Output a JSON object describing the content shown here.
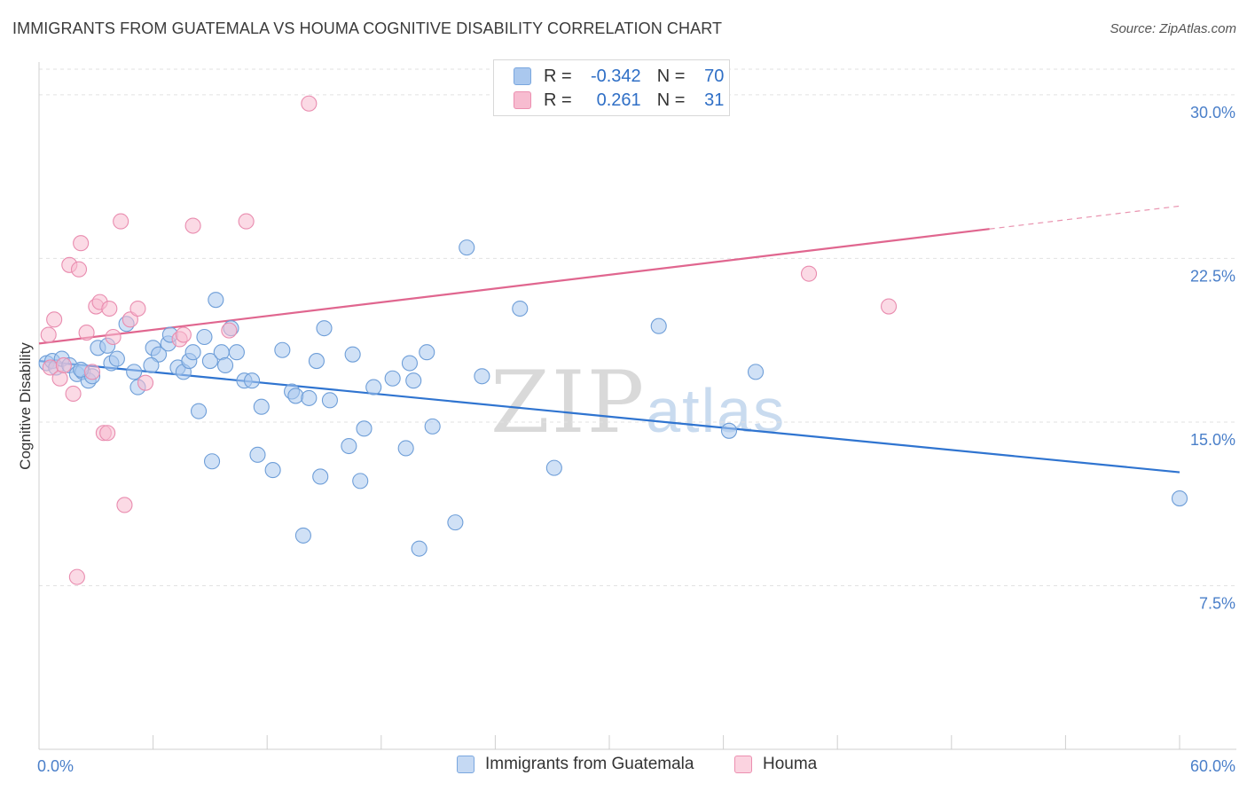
{
  "header": {
    "title": "IMMIGRANTS FROM GUATEMALA VS HOUMA COGNITIVE DISABILITY CORRELATION CHART",
    "source": "Source: ZipAtlas.com"
  },
  "watermark": {
    "part1": "ZIP",
    "part2": "atlas"
  },
  "legend": {
    "rows": [
      {
        "r_label": "R =",
        "r_value": "-0.342",
        "n_label": "N =",
        "n_value": "70",
        "color": "#aac8ee",
        "border": "#7aa7df"
      },
      {
        "r_label": "R =",
        "r_value": "0.261",
        "n_label": "N =",
        "n_value": "31",
        "color": "#f7bcd0",
        "border": "#ec8fb0"
      }
    ]
  },
  "bottom_legend": {
    "items": [
      {
        "label": "Immigrants from Guatemala",
        "color": "#c5d9f3",
        "border": "#7aa7df"
      },
      {
        "label": "Houma",
        "color": "#fbd3e0",
        "border": "#ec8fb0"
      }
    ]
  },
  "chart_data": {
    "type": "scatter",
    "title": "IMMIGRANTS FROM GUATEMALA VS HOUMA COGNITIVE DISABILITY CORRELATION CHART",
    "ylabel": "Cognitive Disability",
    "xlabel": "",
    "xlim": [
      0,
      60
    ],
    "ylim": [
      0,
      31.5
    ],
    "x_tick_labels": [
      "0.0%",
      "60.0%"
    ],
    "y_ticks": [
      7.5,
      15.0,
      22.5,
      30.0
    ],
    "y_tick_labels": [
      "7.5%",
      "15.0%",
      "22.5%",
      "30.0%"
    ],
    "grid": true,
    "series": [
      {
        "name": "Immigrants from Guatemala",
        "color": "#aac8ee",
        "stroke": "#6e9ed8",
        "line_color": "#2f74d0",
        "trend": {
          "x": [
            0,
            60
          ],
          "y": [
            17.8,
            12.7
          ],
          "dashed_from": null
        },
        "points": [
          [
            0.4,
            17.7
          ],
          [
            0.7,
            17.8
          ],
          [
            0.9,
            17.5
          ],
          [
            1.2,
            17.9
          ],
          [
            1.6,
            17.6
          ],
          [
            2.0,
            17.2
          ],
          [
            2.3,
            17.3
          ],
          [
            2.6,
            16.9
          ],
          [
            2.8,
            17.1
          ],
          [
            3.1,
            18.4
          ],
          [
            3.6,
            18.5
          ],
          [
            3.8,
            17.7
          ],
          [
            4.1,
            17.9
          ],
          [
            4.6,
            19.5
          ],
          [
            5.0,
            17.3
          ],
          [
            5.2,
            16.6
          ],
          [
            6.0,
            18.4
          ],
          [
            6.3,
            18.1
          ],
          [
            6.8,
            18.6
          ],
          [
            6.9,
            19.0
          ],
          [
            7.3,
            17.5
          ],
          [
            7.6,
            17.3
          ],
          [
            7.9,
            17.8
          ],
          [
            8.1,
            18.2
          ],
          [
            8.4,
            15.5
          ],
          [
            8.7,
            18.9
          ],
          [
            9.0,
            17.8
          ],
          [
            9.1,
            13.2
          ],
          [
            9.3,
            20.6
          ],
          [
            9.6,
            18.2
          ],
          [
            9.8,
            17.6
          ],
          [
            10.1,
            19.3
          ],
          [
            10.4,
            18.2
          ],
          [
            10.8,
            16.9
          ],
          [
            11.2,
            16.9
          ],
          [
            11.5,
            13.5
          ],
          [
            11.7,
            15.7
          ],
          [
            12.3,
            12.8
          ],
          [
            12.8,
            18.3
          ],
          [
            13.3,
            16.4
          ],
          [
            13.5,
            16.2
          ],
          [
            13.9,
            9.8
          ],
          [
            14.2,
            16.1
          ],
          [
            14.6,
            17.8
          ],
          [
            14.8,
            12.5
          ],
          [
            15.0,
            19.3
          ],
          [
            15.3,
            16.0
          ],
          [
            16.3,
            13.9
          ],
          [
            16.5,
            18.1
          ],
          [
            16.9,
            12.3
          ],
          [
            17.1,
            14.7
          ],
          [
            17.6,
            16.6
          ],
          [
            18.6,
            17.0
          ],
          [
            19.3,
            13.8
          ],
          [
            19.5,
            17.7
          ],
          [
            19.7,
            16.9
          ],
          [
            20.4,
            18.2
          ],
          [
            20.7,
            14.8
          ],
          [
            21.9,
            10.4
          ],
          [
            22.5,
            23.0
          ],
          [
            23.3,
            17.1
          ],
          [
            25.3,
            20.2
          ],
          [
            27.1,
            12.9
          ],
          [
            32.6,
            19.4
          ],
          [
            36.3,
            14.6
          ],
          [
            37.7,
            17.3
          ],
          [
            60.0,
            11.5
          ],
          [
            20.0,
            9.2
          ],
          [
            2.2,
            17.4
          ],
          [
            5.9,
            17.6
          ]
        ]
      },
      {
        "name": "Houma",
        "color": "#f7bcd0",
        "stroke": "#e98caf",
        "line_color": "#e0668f",
        "trend": {
          "x": [
            0,
            60
          ],
          "y": [
            18.6,
            24.9
          ],
          "dashed_from": 50.0
        },
        "points": [
          [
            0.5,
            19.0
          ],
          [
            0.6,
            17.5
          ],
          [
            0.8,
            19.7
          ],
          [
            1.1,
            17.0
          ],
          [
            1.3,
            17.6
          ],
          [
            1.6,
            22.2
          ],
          [
            1.8,
            16.3
          ],
          [
            2.1,
            22.0
          ],
          [
            2.2,
            23.2
          ],
          [
            2.5,
            19.1
          ],
          [
            2.8,
            17.3
          ],
          [
            3.0,
            20.3
          ],
          [
            3.2,
            20.5
          ],
          [
            3.4,
            14.5
          ],
          [
            3.6,
            14.5
          ],
          [
            3.7,
            20.2
          ],
          [
            3.9,
            18.9
          ],
          [
            4.3,
            24.2
          ],
          [
            4.5,
            11.2
          ],
          [
            4.8,
            19.7
          ],
          [
            5.2,
            20.2
          ],
          [
            5.6,
            16.8
          ],
          [
            7.4,
            18.8
          ],
          [
            7.6,
            19.0
          ],
          [
            8.1,
            24.0
          ],
          [
            10.0,
            19.2
          ],
          [
            10.9,
            24.2
          ],
          [
            14.2,
            29.6
          ],
          [
            2.0,
            7.9
          ],
          [
            40.5,
            21.8
          ],
          [
            44.7,
            20.3
          ]
        ]
      }
    ]
  }
}
